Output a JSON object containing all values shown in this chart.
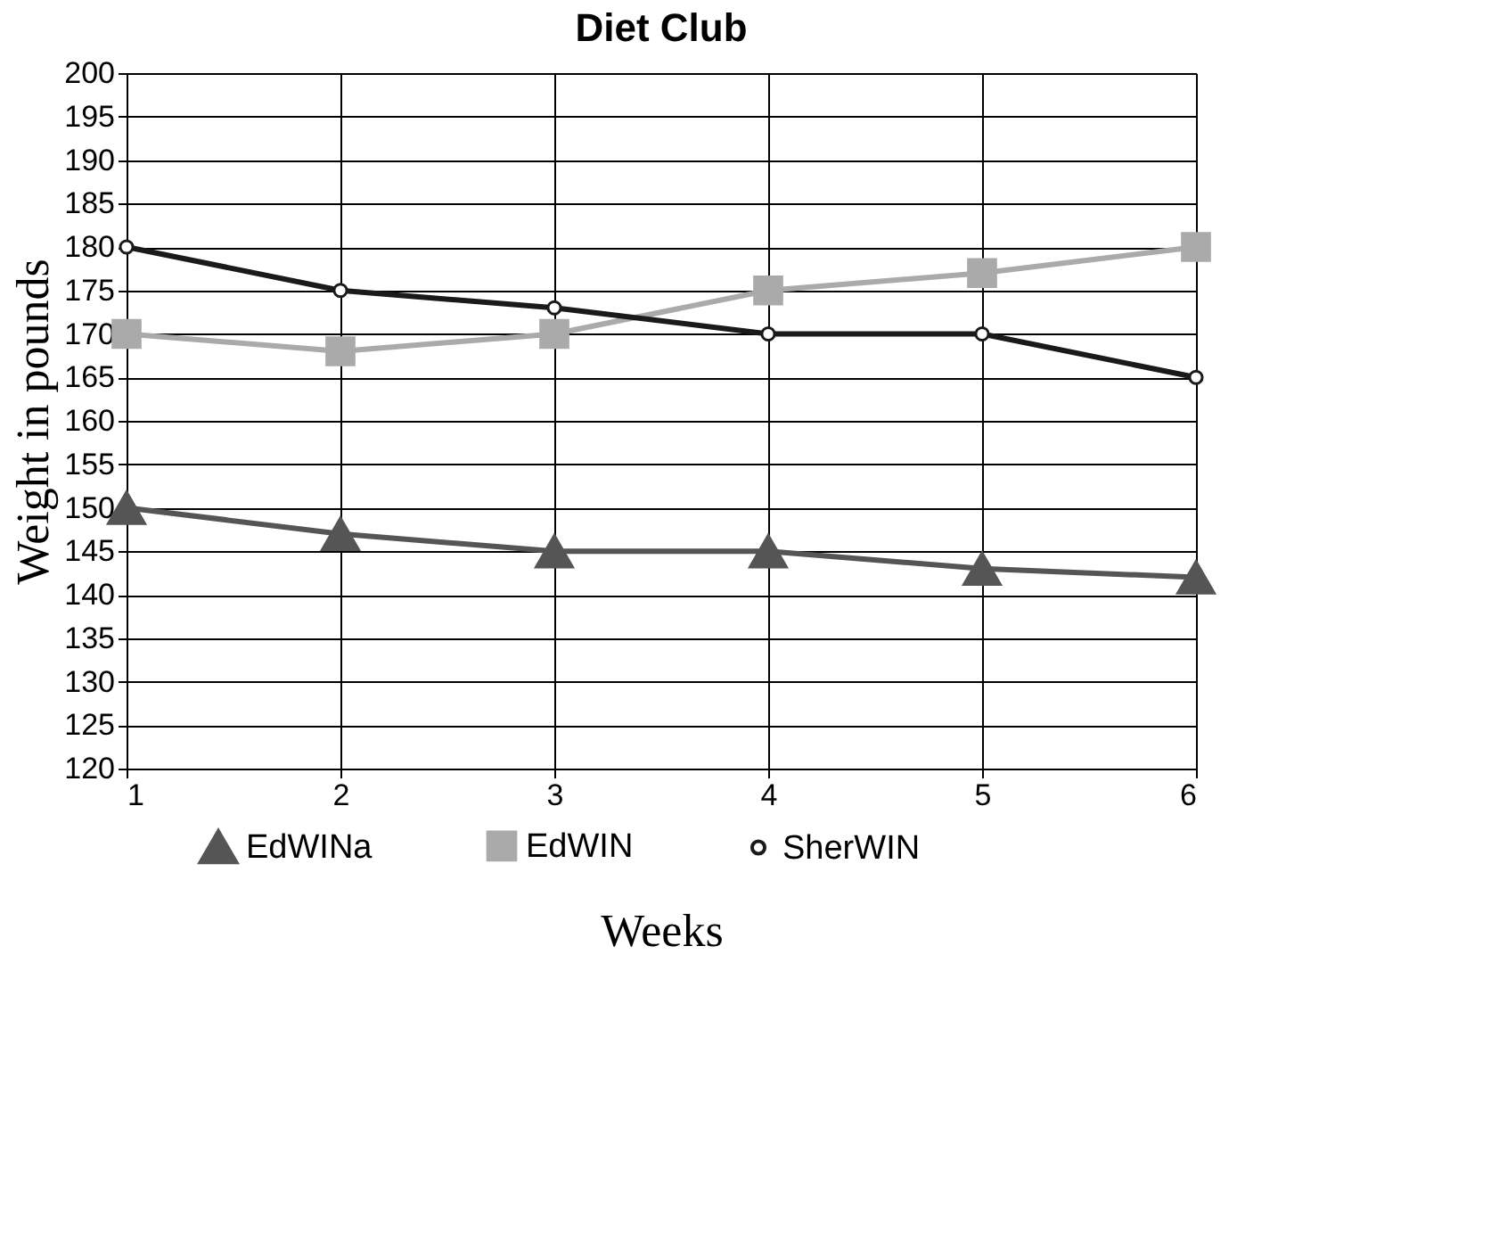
{
  "chart_data": {
    "type": "line",
    "title": "Diet Club",
    "xlabel": "Weeks",
    "ylabel": "Weight in pounds",
    "x": [
      1,
      2,
      3,
      4,
      5,
      6
    ],
    "xlim": [
      1,
      6
    ],
    "xticks": [
      1,
      2,
      3,
      4,
      5,
      6
    ],
    "ylim": [
      120,
      200
    ],
    "yticks": [
      120,
      125,
      130,
      135,
      140,
      145,
      150,
      155,
      160,
      165,
      170,
      175,
      180,
      185,
      190,
      195,
      200
    ],
    "grid": true,
    "legend": "bottom",
    "line_style": "solid",
    "series": [
      {
        "name": "EdWINa",
        "color": "#555555",
        "marker": "triangle",
        "values": [
          150,
          147,
          145,
          145,
          143,
          142
        ]
      },
      {
        "name": "EdWIN",
        "color": "#aaaaaa",
        "marker": "square",
        "values": [
          170,
          168,
          170,
          175,
          177,
          180
        ]
      },
      {
        "name": "SherWIN",
        "color": "#1a1a1a",
        "marker": "circle",
        "values": [
          180,
          175,
          173,
          170,
          170,
          165
        ]
      }
    ]
  }
}
